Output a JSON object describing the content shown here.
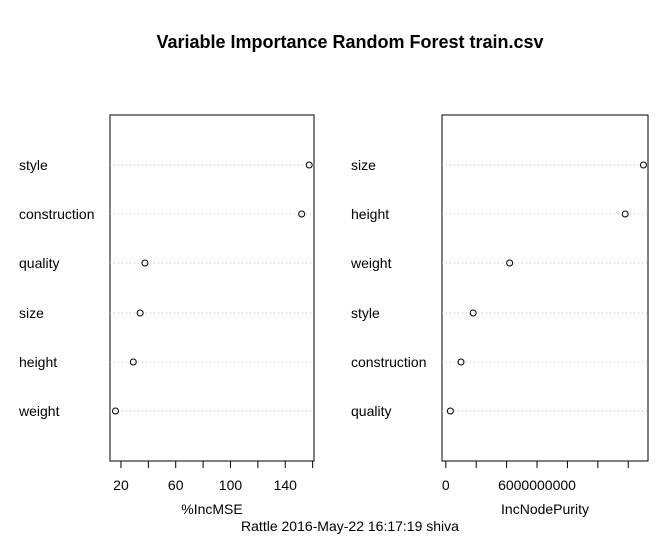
{
  "title": "Variable Importance Random Forest train.csv",
  "subtitle": "Rattle 2016-May-22 16:17:19 shiva",
  "chart_data": [
    {
      "type": "scatter",
      "name": "mse",
      "xlabel": "%IncMSE",
      "xlim": [
        12,
        161
      ],
      "xticks": [
        20,
        40,
        60,
        80,
        100,
        120,
        140,
        160
      ],
      "xtick_labels": [
        "20",
        "",
        "60",
        "",
        "100",
        "",
        "140",
        ""
      ],
      "categories": [
        "style",
        "construction",
        "quality",
        "size",
        "height",
        "weight"
      ],
      "values": [
        157.5,
        152,
        37.5,
        34,
        29,
        16
      ]
    },
    {
      "type": "scatter",
      "name": "purity",
      "xlabel": "IncNodePurity",
      "xlim": [
        -250000000,
        13300000000
      ],
      "xticks": [
        0,
        2000000000,
        4000000000,
        6000000000,
        8000000000,
        10000000000,
        12000000000
      ],
      "xtick_labels": [
        "0",
        "",
        "",
        "6000000000",
        "",
        "",
        ""
      ],
      "categories": [
        "size",
        "height",
        "weight",
        "style",
        "construction",
        "quality"
      ],
      "values": [
        13000000000,
        11800000000,
        4200000000,
        1800000000,
        1000000000,
        300000000
      ]
    }
  ]
}
